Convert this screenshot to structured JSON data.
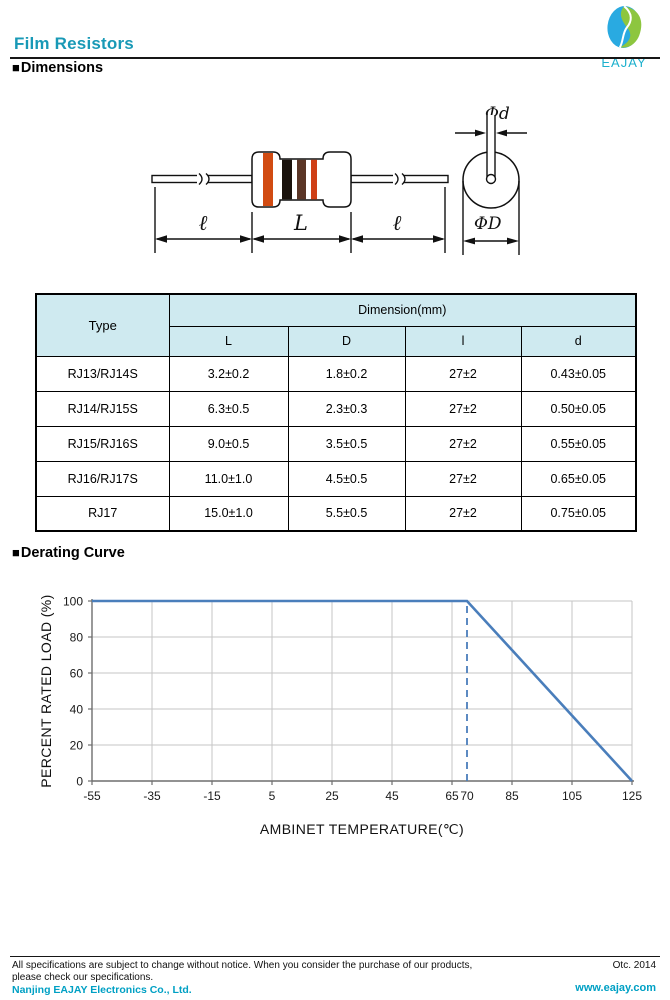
{
  "header": {
    "title": "Film Resistors",
    "logo": {
      "brand": "EAJAY",
      "blue": "#29aae1",
      "green": "#8dc63f"
    }
  },
  "sections": {
    "dimensions": {
      "bullet": "■",
      "label": "Dimensions"
    },
    "derating": {
      "bullet": "■",
      "label": "Derating Curve"
    }
  },
  "drawing": {
    "labels": {
      "lead_left": "ℓ",
      "body": "L",
      "lead_right": "ℓ",
      "lead_dia": "Φd",
      "body_dia": "ΦD"
    },
    "band_colors": [
      "#d14b12",
      "#1a120c",
      "#5a3526",
      "#cf3f16"
    ]
  },
  "table": {
    "type_header": "Type",
    "group_header": "Dimension(mm)",
    "columns": [
      "L",
      "D",
      "l",
      "d"
    ],
    "rows": [
      [
        "RJ13/RJ14S",
        "3.2±0.2",
        "1.8±0.2",
        "27±2",
        "0.43±0.05"
      ],
      [
        "RJ14/RJ15S",
        "6.3±0.5",
        "2.3±0.3",
        "27±2",
        "0.50±0.05"
      ],
      [
        "RJ15/RJ16S",
        "9.0±0.5",
        "3.5±0.5",
        "27±2",
        "0.55±0.05"
      ],
      [
        "RJ16/RJ17S",
        "11.0±1.0",
        "4.5±0.5",
        "27±2",
        "0.65±0.05"
      ],
      [
        "RJ17",
        "15.0±1.0",
        "5.5±0.5",
        "27±2",
        "0.75±0.05"
      ]
    ]
  },
  "chart_data": {
    "type": "line",
    "title": "",
    "xlabel": "AMBINET TEMPERATURE(℃)",
    "ylabel": "PERCENT RATED LOAD (%)",
    "xlim": [
      -55,
      125
    ],
    "ylim": [
      0,
      100
    ],
    "x_ticks": [
      -55,
      -35,
      -15,
      5,
      25,
      45,
      65,
      85,
      105,
      125
    ],
    "x_extra_tick_labels": [
      70
    ],
    "y_ticks": [
      0,
      20,
      40,
      60,
      80,
      100
    ],
    "grid": true,
    "legend": "none",
    "series": [
      {
        "name": "Derating curve",
        "points": [
          [
            -55,
            100
          ],
          [
            70,
            100
          ],
          [
            125,
            0
          ]
        ]
      }
    ],
    "dashed_vline_x": 70,
    "colors": {
      "line": "#4a7ebb",
      "grid": "#c6c6c6",
      "axis": "#6e6e6e"
    }
  },
  "footer": {
    "line1": "All specifications are subject to change without notice. When you consider the purchase of our products,",
    "line2": "please check our specifications.",
    "company": "Nanjing EAJAY Electronics Co., Ltd.",
    "date": "Otc. 2014",
    "website": "www.eajay.com"
  }
}
